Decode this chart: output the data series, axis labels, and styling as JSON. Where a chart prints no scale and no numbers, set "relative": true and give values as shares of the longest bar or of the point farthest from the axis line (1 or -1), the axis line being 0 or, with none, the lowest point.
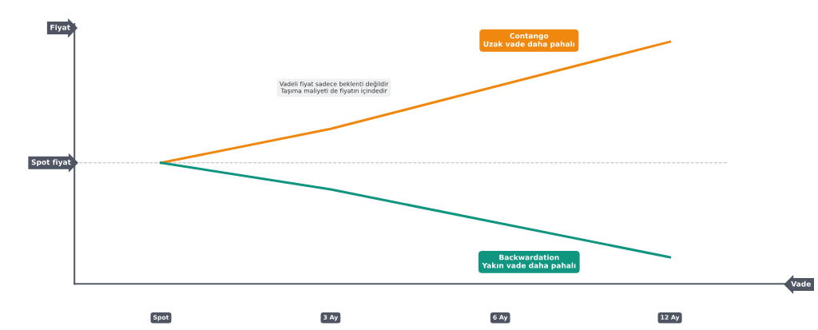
{
  "chart_data": {
    "type": "line",
    "relative": true,
    "ylabel": "Fiyat",
    "xlabel": "Vade",
    "categories": [
      "Spot",
      "3 Ay",
      "6 Ay",
      "12 Ay"
    ],
    "series": [
      {
        "name": "Contango\nUzak vade daha pahalı",
        "color": "#f0870f",
        "values": [
          0.5,
          0.64,
          0.82,
          1
        ]
      },
      {
        "name": "Backwardation\nYakın vade daha pahalı",
        "color": "#109581",
        "values": [
          0.5,
          0.39,
          0.25,
          0.11
        ]
      }
    ],
    "ref_lines": [
      {
        "axis": "y",
        "value": 0.5,
        "label": "Spot fiyat",
        "color": "#bbbbbb",
        "line_style": "dashed"
      }
    ],
    "annotations": [
      "Vadeli fiyat sadece beklenti değildir\nTaşıma maliyeti de fiyatın içindedir"
    ],
    "grid": false,
    "legend": false,
    "marker": "none",
    "line_style": "solid"
  }
}
